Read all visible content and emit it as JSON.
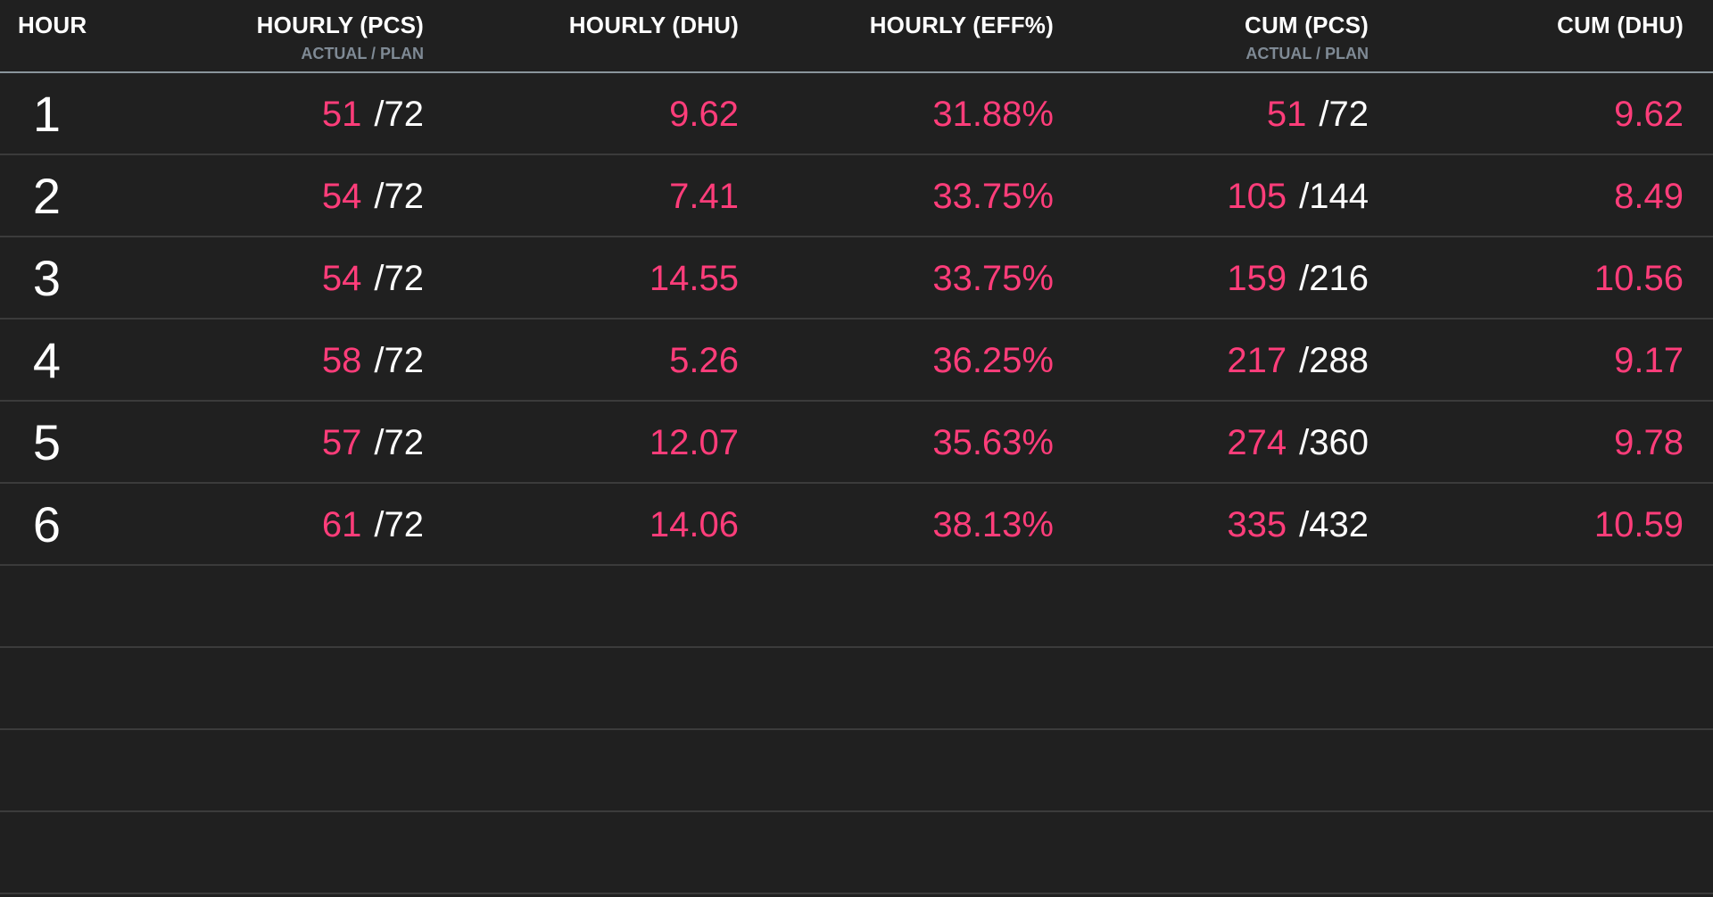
{
  "headers": {
    "hour": "HOUR",
    "hourly_pcs": "HOURLY (PCS)",
    "hourly_pcs_sub": "ACTUAL / PLAN",
    "hourly_dhu": "HOURLY (DHU)",
    "hourly_eff": "HOURLY (EFF%)",
    "cum_pcs": "CUM (PCS)",
    "cum_pcs_sub": "ACTUAL / PLAN",
    "cum_dhu": "CUM (DHU)"
  },
  "rows": [
    {
      "hour": "1",
      "hourly_actual": "51",
      "hourly_plan": "72",
      "hourly_dhu": "9.62",
      "hourly_eff": "31.88%",
      "cum_actual": "51",
      "cum_plan": "72",
      "cum_dhu": "9.62"
    },
    {
      "hour": "2",
      "hourly_actual": "54",
      "hourly_plan": "72",
      "hourly_dhu": "7.41",
      "hourly_eff": "33.75%",
      "cum_actual": "105",
      "cum_plan": "144",
      "cum_dhu": "8.49"
    },
    {
      "hour": "3",
      "hourly_actual": "54",
      "hourly_plan": "72",
      "hourly_dhu": "14.55",
      "hourly_eff": "33.75%",
      "cum_actual": "159",
      "cum_plan": "216",
      "cum_dhu": "10.56"
    },
    {
      "hour": "4",
      "hourly_actual": "58",
      "hourly_plan": "72",
      "hourly_dhu": "5.26",
      "hourly_eff": "36.25%",
      "cum_actual": "217",
      "cum_plan": "288",
      "cum_dhu": "9.17"
    },
    {
      "hour": "5",
      "hourly_actual": "57",
      "hourly_plan": "72",
      "hourly_dhu": "12.07",
      "hourly_eff": "35.63%",
      "cum_actual": "274",
      "cum_plan": "360",
      "cum_dhu": "9.78"
    },
    {
      "hour": "6",
      "hourly_actual": "61",
      "hourly_plan": "72",
      "hourly_dhu": "14.06",
      "hourly_eff": "38.13%",
      "cum_actual": "335",
      "cum_plan": "432",
      "cum_dhu": "10.59"
    }
  ],
  "colors": {
    "background": "#202020",
    "actual_value": "#ff3d7a",
    "plan_value": "#ffffff",
    "subheader": "#7f8a95",
    "header_rule": "#8a959c",
    "row_rule": "#3b3b3b"
  }
}
